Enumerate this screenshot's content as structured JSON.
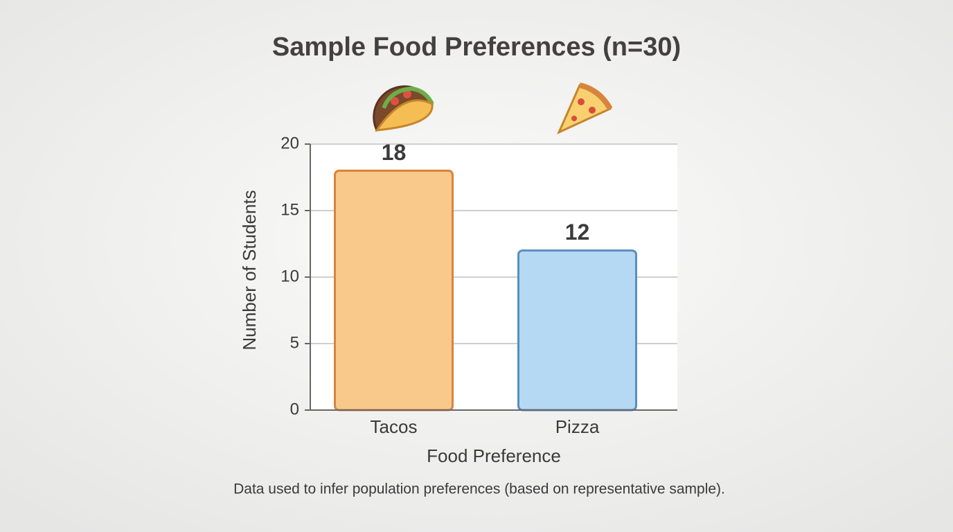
{
  "chart_data": {
    "type": "bar",
    "title": "Sample Food Preferences (n=30)",
    "x_label": "Food Preference",
    "y_label": "Number of Students",
    "categories": [
      "Tacos",
      "Pizza"
    ],
    "values": [
      18,
      12
    ],
    "colors": [
      "#f8c98a",
      "#b5d9f3"
    ],
    "edge_colors": [
      "#d9843c",
      "#5a8ebd"
    ],
    "ylim": [
      0,
      20
    ],
    "yticks": [
      0,
      5,
      10,
      15,
      20
    ],
    "grid": true,
    "footnote": "Data used to infer population preferences (based on representative sample)."
  }
}
